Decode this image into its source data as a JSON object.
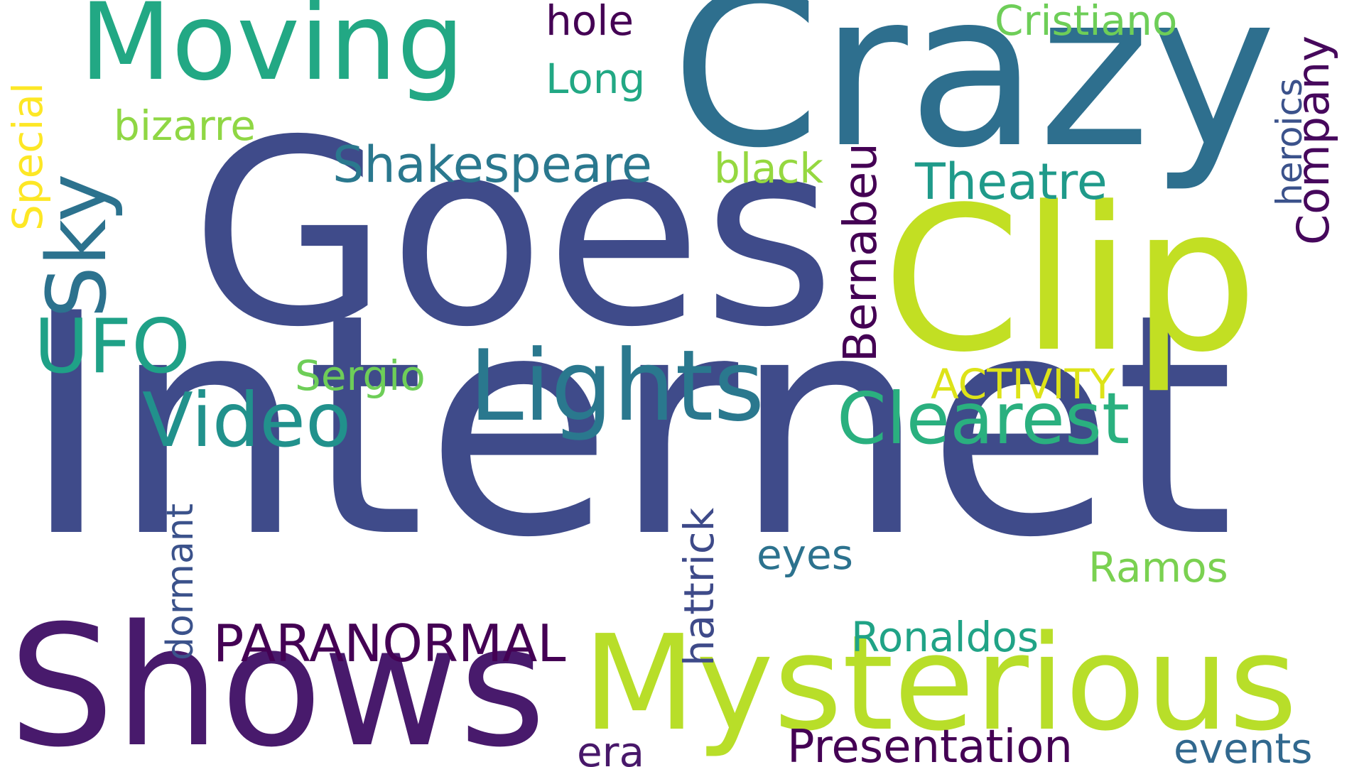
{
  "words": [
    {
      "text": "Internet",
      "color": "#3f4b8a"
    },
    {
      "text": "Goes",
      "color": "#3f4b8a"
    },
    {
      "text": "Crazy",
      "color": "#2e6f8e"
    },
    {
      "text": "Clip",
      "color": "#c2df23"
    },
    {
      "text": "Shows",
      "color": "#481a6c"
    },
    {
      "text": "Mysterious",
      "color": "#b8de29"
    },
    {
      "text": "Moving",
      "color": "#22a884"
    },
    {
      "text": "Lights",
      "color": "#2a788e"
    },
    {
      "text": "Video",
      "color": "#21918c"
    },
    {
      "text": "Clearest",
      "color": "#2ab07f"
    },
    {
      "text": "Sky",
      "color": "#2c728e"
    },
    {
      "text": "UFO",
      "color": "#1fa187"
    },
    {
      "text": "PARANORMAL",
      "color": "#440154"
    },
    {
      "text": "Presentation",
      "color": "#440154"
    },
    {
      "text": "events",
      "color": "#31688e"
    },
    {
      "text": "Shakespeare",
      "color": "#2a788e"
    },
    {
      "text": "Theatre",
      "color": "#1f9a8a"
    },
    {
      "text": "Company",
      "color": "#46085c"
    },
    {
      "text": "heroics",
      "color": "#3b528b"
    },
    {
      "text": "Bernabeu",
      "color": "#440154"
    },
    {
      "text": "Cristiano",
      "color": "#6ece58"
    },
    {
      "text": "Ronaldos",
      "color": "#20a386"
    },
    {
      "text": "Ramos",
      "color": "#7ad151"
    },
    {
      "text": "Sergio",
      "color": "#6ece58"
    },
    {
      "text": "ACTIVITY",
      "color": "#dde318"
    },
    {
      "text": "Special",
      "color": "#fde725"
    },
    {
      "text": "bizarre",
      "color": "#8fd744"
    },
    {
      "text": "black",
      "color": "#95d840"
    },
    {
      "text": "Long",
      "color": "#22a884"
    },
    {
      "text": "hole",
      "color": "#440154"
    },
    {
      "text": "eyes",
      "color": "#2c728e"
    },
    {
      "text": "hattrick",
      "color": "#3e4a89"
    },
    {
      "text": "dormant",
      "color": "#3b528b"
    },
    {
      "text": "era",
      "color": "#48186a"
    }
  ]
}
